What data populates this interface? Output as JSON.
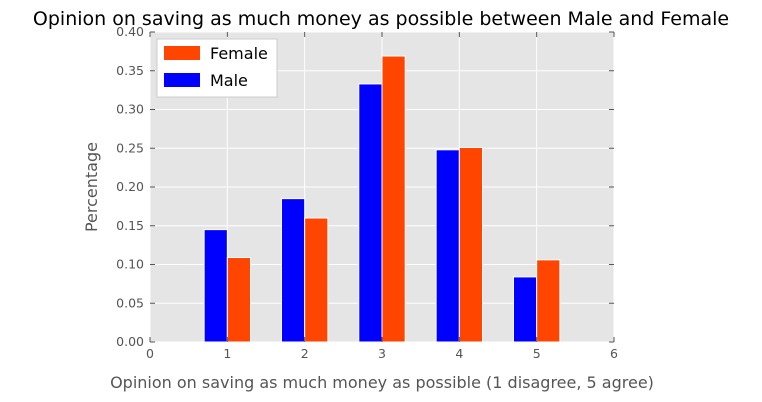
{
  "chart_data": {
    "type": "bar",
    "title": "Opinion on saving as much money as possible between Male and Female",
    "xlabel": "Opinion on saving as much money as possible (1 disagree, 5 agree)",
    "ylabel": "Percentage",
    "xlim": [
      0,
      6
    ],
    "ylim": [
      0,
      0.4
    ],
    "x_ticks": [
      "0",
      "1",
      "2",
      "3",
      "4",
      "5",
      "6"
    ],
    "y_ticks": [
      "0.00",
      "0.05",
      "0.10",
      "0.15",
      "0.20",
      "0.25",
      "0.30",
      "0.35",
      "0.40"
    ],
    "categories": [
      1,
      2,
      3,
      4,
      5
    ],
    "grid": true,
    "legend_position": "top-left",
    "series": [
      {
        "name": "Male",
        "color": "#0000ff",
        "values": [
          0.145,
          0.185,
          0.333,
          0.248,
          0.084
        ]
      },
      {
        "name": "Female",
        "color": "#ff4500",
        "values": [
          0.109,
          0.16,
          0.369,
          0.251,
          0.106
        ]
      }
    ],
    "legend_order": [
      "Female",
      "Male"
    ],
    "plot_background": "#e5e5e5",
    "grid_color": "#ffffff"
  }
}
